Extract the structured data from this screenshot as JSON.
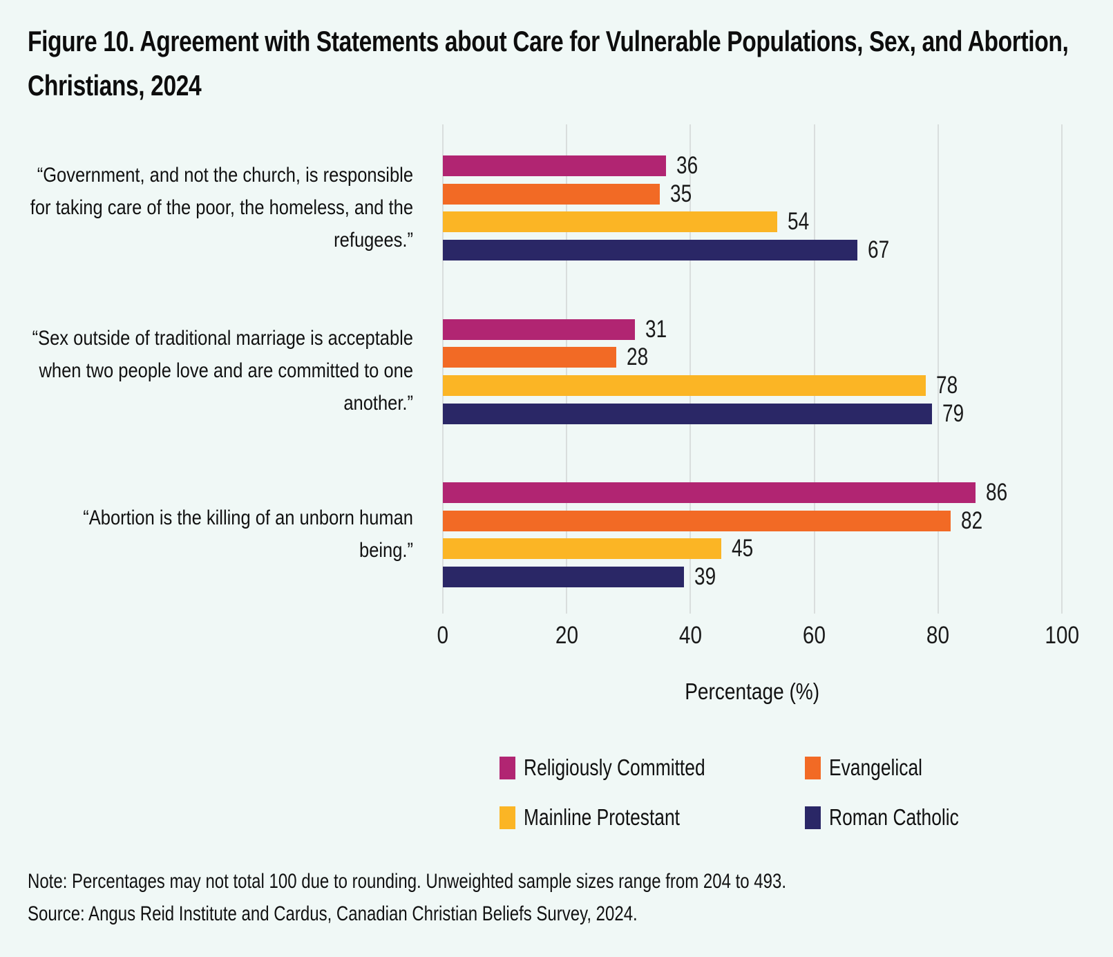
{
  "title": "Figure 10. Agreement with Statements about Care for Vulnerable Populations, Sex, and Abortion, Christians, 2024",
  "chart_data": {
    "type": "bar",
    "orientation": "horizontal",
    "categories": [
      "“Government, and not the church, is responsible for taking care of the poor, the homeless, and the refugees.”",
      "“Sex outside of traditional marriage is acceptable when two people love and are committed to one another.”",
      "“Abortion is the killing of an unborn human being.”"
    ],
    "series": [
      {
        "name": "Religiously Committed",
        "color": "#b12572",
        "values": [
          36,
          31,
          86
        ]
      },
      {
        "name": "Evangelical",
        "color": "#f26a25",
        "values": [
          35,
          28,
          82
        ]
      },
      {
        "name": "Mainline Protestant",
        "color": "#fbb525",
        "values": [
          54,
          78,
          45
        ]
      },
      {
        "name": "Roman Catholic",
        "color": "#2a2766",
        "values": [
          67,
          79,
          39
        ]
      }
    ],
    "xlabel": "Percentage (%)",
    "xlim": [
      0,
      100
    ],
    "xticks": [
      0,
      20,
      40,
      60,
      80,
      100
    ],
    "grid": "vertical",
    "legend_position": "bottom",
    "value_labels": true,
    "colors": {
      "background": "#f0f8f6",
      "gridline": "#d9dedd",
      "text": "#111111"
    }
  },
  "note": "Note: Percentages may not total 100 due to rounding. Unweighted sample sizes range from 204 to 493.",
  "source": "Source: Angus Reid Institute and Cardus, Canadian Christian Beliefs Survey, 2024."
}
